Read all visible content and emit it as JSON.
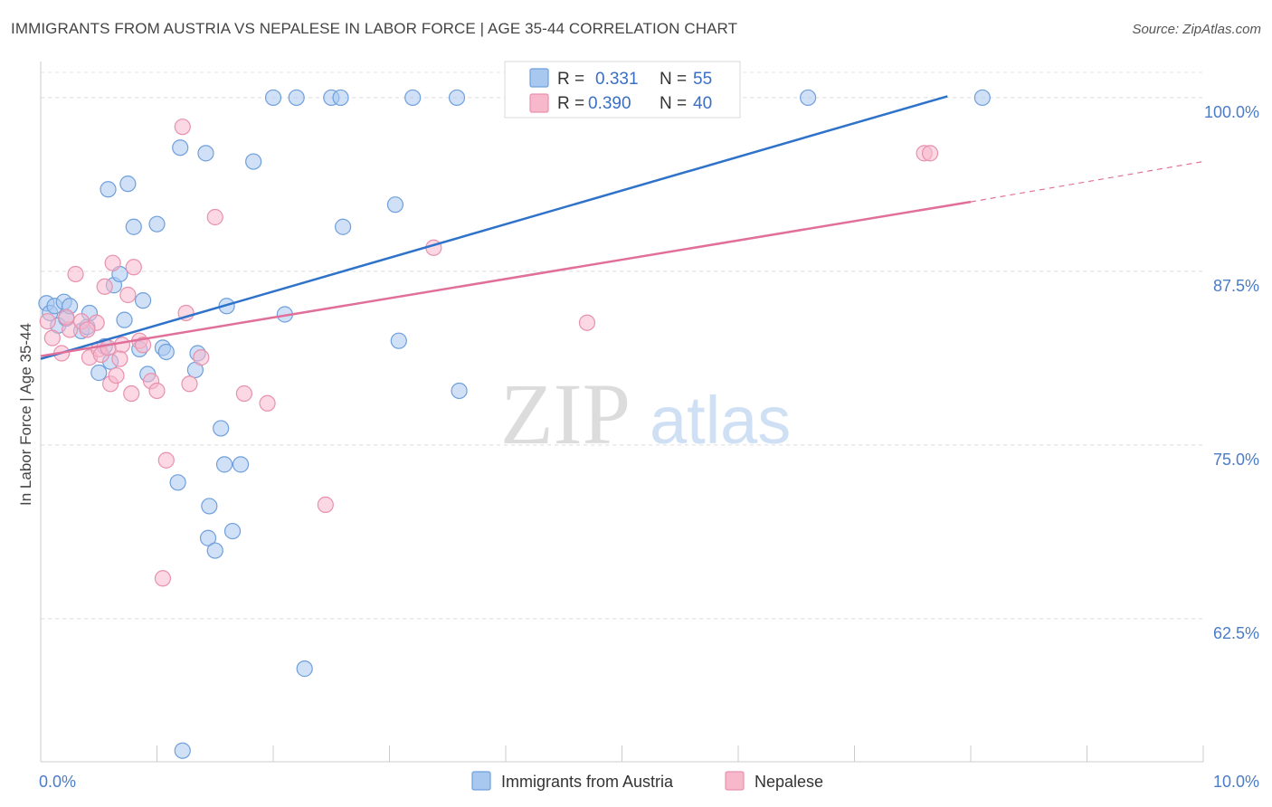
{
  "header": {
    "title": "IMMIGRANTS FROM AUSTRIA VS NEPALESE IN LABOR FORCE | AGE 35-44 CORRELATION CHART",
    "source": "Source: ZipAtlas.com"
  },
  "watermark": {
    "zip": "ZIP",
    "atlas": "atlas"
  },
  "legend": {
    "rows": [
      {
        "r_label": "R =",
        "r_value": "0.331",
        "n_label": "N =",
        "n_value": "55"
      },
      {
        "r_label": "R =",
        "r_value": "0.390",
        "n_label": "N =",
        "n_value": "40"
      }
    ]
  },
  "colors": {
    "austria_fill": "#a9c8f0",
    "austria_stroke": "#6f9fdc",
    "austria_line": "#2f72c9",
    "nepal_fill": "#f7b8cc",
    "nepal_stroke": "#e891ad",
    "nepal_line": "#e0709a"
  },
  "chart_data": {
    "type": "scatter",
    "title": "IMMIGRANTS FROM AUSTRIA VS NEPALESE IN LABOR FORCE | AGE 35-44 CORRELATION CHART",
    "xlabel": "",
    "ylabel": "In Labor Force | Age 35-44",
    "xlim": [
      0,
      10
    ],
    "ylim": [
      52.2,
      102.6
    ],
    "x_tick_labels": [
      "0.0%",
      "10.0%"
    ],
    "y_ticks": [
      62.5,
      75.0,
      87.5,
      100.0
    ],
    "y_tick_labels": [
      "62.5%",
      "75.0%",
      "87.5%",
      "100.0%"
    ],
    "grid": true,
    "legend_position": "top-center",
    "series": [
      {
        "name": "Immigrants from Austria",
        "r": 0.331,
        "n": 55,
        "trend": {
          "x0": 0.0,
          "y0": 81.2,
          "x1": 7.8,
          "y1": 100.1
        },
        "points": [
          [
            0.05,
            85.2
          ],
          [
            0.08,
            84.5
          ],
          [
            0.12,
            85.0
          ],
          [
            0.15,
            83.6
          ],
          [
            0.2,
            85.3
          ],
          [
            0.22,
            84.1
          ],
          [
            0.25,
            85.0
          ],
          [
            0.35,
            83.2
          ],
          [
            0.4,
            83.5
          ],
          [
            0.42,
            84.5
          ],
          [
            0.5,
            80.2
          ],
          [
            0.55,
            82.1
          ],
          [
            0.6,
            81.0
          ],
          [
            0.58,
            93.4
          ],
          [
            0.63,
            86.5
          ],
          [
            0.68,
            87.3
          ],
          [
            0.72,
            84.0
          ],
          [
            0.75,
            93.8
          ],
          [
            0.8,
            90.7
          ],
          [
            0.85,
            81.9
          ],
          [
            0.88,
            85.4
          ],
          [
            0.92,
            80.1
          ],
          [
            1.0,
            90.9
          ],
          [
            1.05,
            82.0
          ],
          [
            1.08,
            81.7
          ],
          [
            1.18,
            72.3
          ],
          [
            1.2,
            96.4
          ],
          [
            1.22,
            53.0
          ],
          [
            1.33,
            80.4
          ],
          [
            1.35,
            81.6
          ],
          [
            1.42,
            96.0
          ],
          [
            1.44,
            68.3
          ],
          [
            1.5,
            67.4
          ],
          [
            1.45,
            70.6
          ],
          [
            1.55,
            76.2
          ],
          [
            1.58,
            73.6
          ],
          [
            1.6,
            85.0
          ],
          [
            1.65,
            68.8
          ],
          [
            1.72,
            73.6
          ],
          [
            1.83,
            95.4
          ],
          [
            2.0,
            100.0
          ],
          [
            2.1,
            84.4
          ],
          [
            2.2,
            100.0
          ],
          [
            2.27,
            58.9
          ],
          [
            2.5,
            100.0
          ],
          [
            2.58,
            100.0
          ],
          [
            2.6,
            90.7
          ],
          [
            3.05,
            92.3
          ],
          [
            3.08,
            82.5
          ],
          [
            3.2,
            100.0
          ],
          [
            3.58,
            100.0
          ],
          [
            3.6,
            78.9
          ],
          [
            5.3,
            100.0
          ],
          [
            6.6,
            100.0
          ],
          [
            8.1,
            100.0
          ]
        ]
      },
      {
        "name": "Nepalese",
        "r": 0.39,
        "n": 40,
        "trend": {
          "x0": 0.0,
          "y0": 81.4,
          "x1": 8.0,
          "y1": 92.5
        },
        "trend_dashed": {
          "x0": 8.0,
          "y0": 92.5,
          "x1": 10.0,
          "y1": 95.4
        },
        "points": [
          [
            0.06,
            83.9
          ],
          [
            0.1,
            82.7
          ],
          [
            0.18,
            81.6
          ],
          [
            0.25,
            83.3
          ],
          [
            0.3,
            87.3
          ],
          [
            0.35,
            83.9
          ],
          [
            0.42,
            81.3
          ],
          [
            0.48,
            83.8
          ],
          [
            0.5,
            81.9
          ],
          [
            0.52,
            81.5
          ],
          [
            0.55,
            86.4
          ],
          [
            0.6,
            79.4
          ],
          [
            0.62,
            88.1
          ],
          [
            0.65,
            80.0
          ],
          [
            0.7,
            82.2
          ],
          [
            0.75,
            85.8
          ],
          [
            0.78,
            78.7
          ],
          [
            0.8,
            87.8
          ],
          [
            0.85,
            82.5
          ],
          [
            0.88,
            82.2
          ],
          [
            0.95,
            79.6
          ],
          [
            1.0,
            78.9
          ],
          [
            1.05,
            65.4
          ],
          [
            1.08,
            73.9
          ],
          [
            1.22,
            97.9
          ],
          [
            1.25,
            84.5
          ],
          [
            1.28,
            79.4
          ],
          [
            1.38,
            81.3
          ],
          [
            1.5,
            91.4
          ],
          [
            1.75,
            78.7
          ],
          [
            1.95,
            78.0
          ],
          [
            2.45,
            70.7
          ],
          [
            3.38,
            89.2
          ],
          [
            4.7,
            83.8
          ],
          [
            7.6,
            96.0
          ],
          [
            7.65,
            96.0
          ],
          [
            0.22,
            84.2
          ],
          [
            0.4,
            83.3
          ],
          [
            0.58,
            82.0
          ],
          [
            0.68,
            81.2
          ]
        ]
      }
    ]
  }
}
